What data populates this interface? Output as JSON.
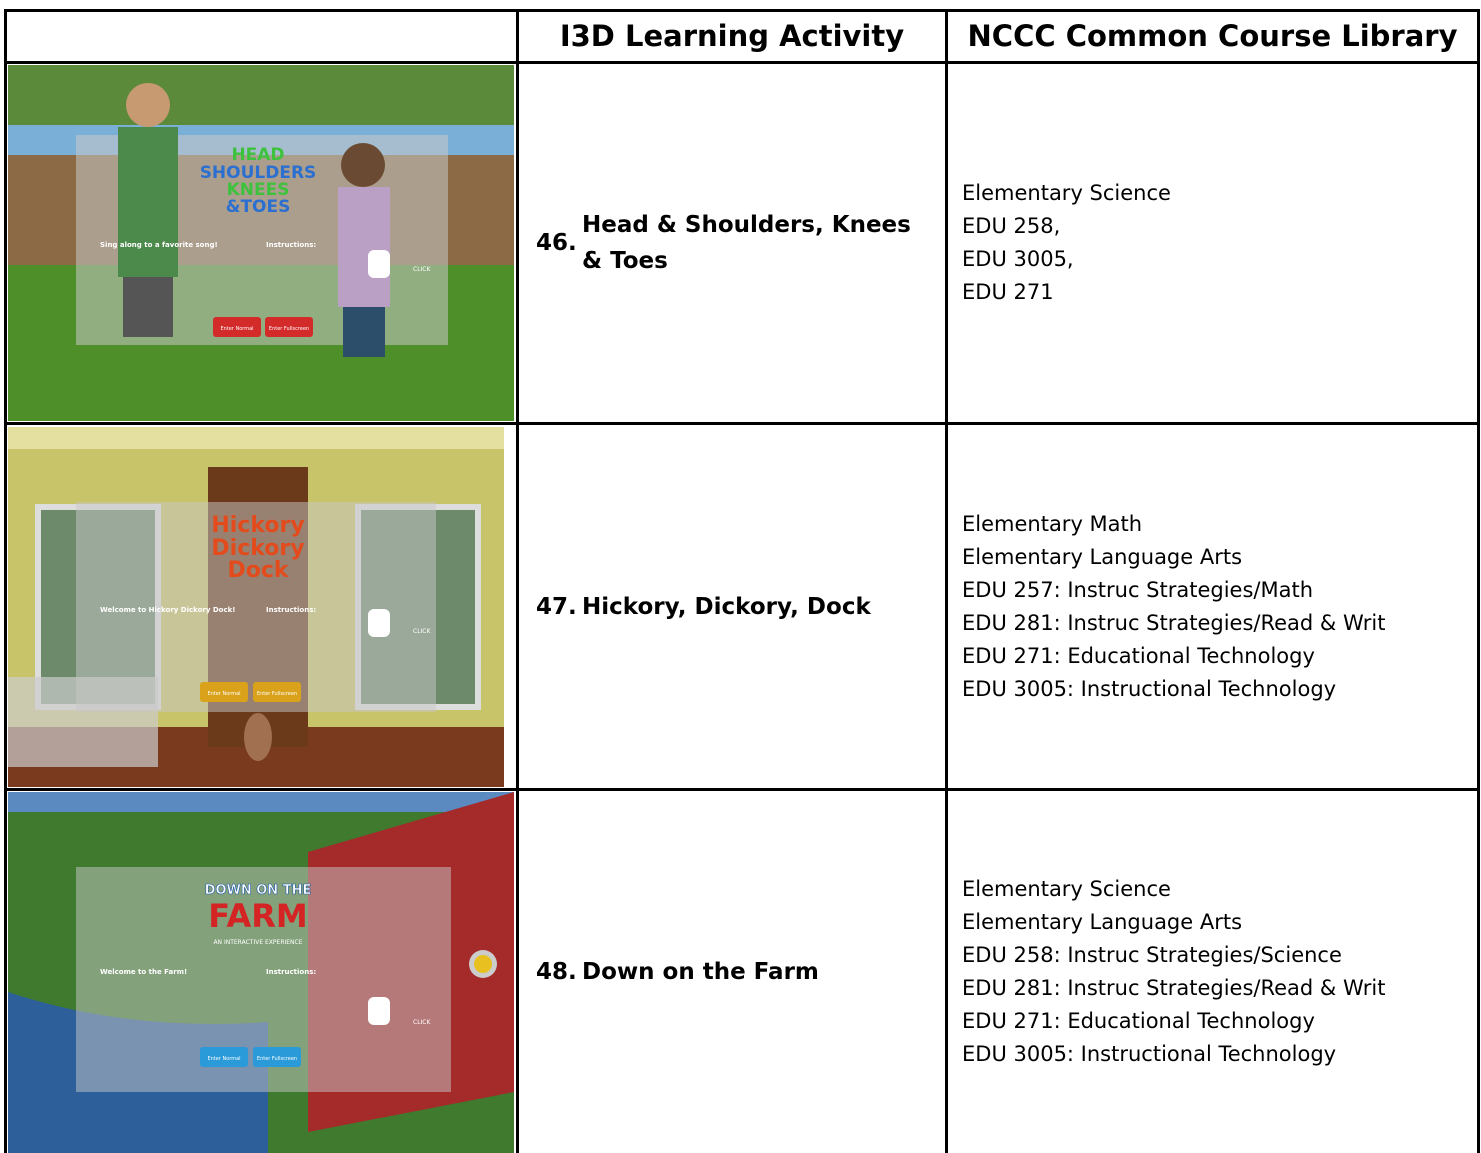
{
  "table": {
    "header": {
      "activity": "I3D Learning Activity",
      "library": "NCCC Common Course Library"
    },
    "rows": [
      {
        "number": "46.",
        "title": "Head & Shoulders, Knees & Toes",
        "courses": [
          "Elementary Science",
          "EDU 258,",
          "EDU 3005,",
          "EDU 271"
        ],
        "screenshot": {
          "logo": [
            "HEAD",
            "SHOULDERS",
            "KNEES",
            "&TOES"
          ],
          "intro": "Sing along to a favorite song!",
          "instructions": "Instructions:",
          "click": "CLICK",
          "buttons": [
            "Enter Normal",
            "Enter Fullscreen"
          ]
        }
      },
      {
        "number": "47.",
        "title": "Hickory, Dickory, Dock",
        "courses": [
          "Elementary Math",
          "Elementary Language Arts",
          "EDU 257: Instruc Strategies/Math",
          "EDU 281: Instruc Strategies/Read & Writ",
          "EDU 271: Educational Technology",
          "EDU 3005: Instructional Technology"
        ],
        "screenshot": {
          "logo": [
            "Hickory",
            "Dickory",
            "Dock"
          ],
          "intro": "Welcome to Hickory Dickory Dock!",
          "instructions": "Instructions:",
          "click": "CLICK",
          "buttons": [
            "Enter Normal",
            "Enter Fullscreen"
          ]
        }
      },
      {
        "number": "48.",
        "title": "Down on the Farm",
        "courses": [
          "Elementary Science",
          "Elementary Language Arts",
          "EDU 258: Instruc Strategies/Science",
          "EDU 281: Instruc Strategies/Read & Writ",
          "EDU 271: Educational Technology",
          "EDU 3005: Instructional Technology"
        ],
        "screenshot": {
          "logo": [
            "DOWN ON THE",
            "FARM",
            "AN INTERACTIVE EXPERIENCE"
          ],
          "intro": "Welcome to the Farm!",
          "instructions": "Instructions:",
          "click": "CLICK",
          "buttons": [
            "Enter Normal",
            "Enter Fullscreen"
          ]
        }
      }
    ]
  }
}
